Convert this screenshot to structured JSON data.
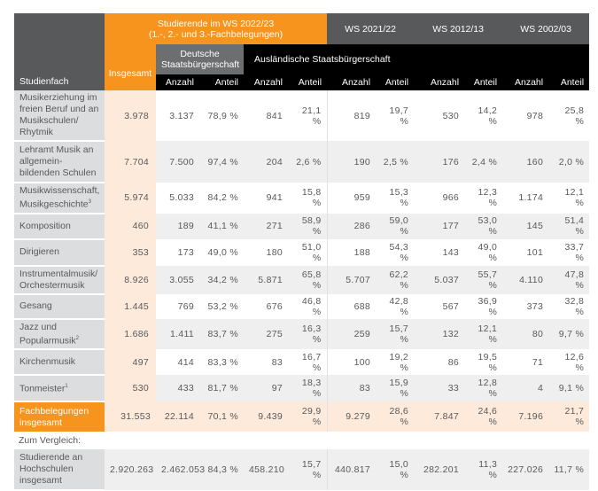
{
  "header": {
    "studienfach": "Studienfach",
    "group_current": "Studierende im WS 2022/23\n(1.-, 2.- und 3.-Fachbelegungen)",
    "ws2021": "WS 2021/22",
    "ws2012": "WS 2012/13",
    "ws2002": "WS 2002/03",
    "insgesamt": "Insgesamt",
    "deutsche": "Deutsche Staatsbürgerschaft",
    "auslaendische": "Ausländische Staatsbürgerschaft",
    "anzahl": "Anzahl",
    "anteil": "Anteil"
  },
  "rows": [
    {
      "name": "Musikerziehung im freien Beruf und an Musikschulen/ Rhytmik",
      "sup": "",
      "values": [
        "3.978",
        "3.137",
        "78,9 %",
        "841",
        "21,1 %",
        "819",
        "19,7 %",
        "530",
        "14,2 %",
        "978",
        "25,8 %"
      ]
    },
    {
      "name": "Lehramt Musik an allgemein-bildenden Schulen",
      "sup": "",
      "values": [
        "7.704",
        "7.500",
        "97,4 %",
        "204",
        "2,6 %",
        "190",
        "2,5 %",
        "176",
        "2,4 %",
        "160",
        "2,0 %"
      ]
    },
    {
      "name": "Musikwissenschaft, Musikgeschichte",
      "sup": "3",
      "values": [
        "5.974",
        "5.033",
        "84,2 %",
        "941",
        "15,8 %",
        "959",
        "15,3 %",
        "966",
        "12,3 %",
        "1.174",
        "12,1 %"
      ]
    },
    {
      "name": "Komposition",
      "sup": "",
      "values": [
        "460",
        "189",
        "41,1 %",
        "271",
        "58,9 %",
        "286",
        "59,0 %",
        "177",
        "53,0 %",
        "145",
        "51,4 %"
      ]
    },
    {
      "name": "Dirigieren",
      "sup": "",
      "values": [
        "353",
        "173",
        "49,0 %",
        "180",
        "51,0 %",
        "188",
        "54,3 %",
        "143",
        "49,0 %",
        "101",
        "33,7 %"
      ]
    },
    {
      "name": "Instrumentalmusik/ Orchestermusik",
      "sup": "",
      "values": [
        "8.926",
        "3.055",
        "34,2 %",
        "5.871",
        "65,8 %",
        "5.707",
        "62,2 %",
        "5.037",
        "55,7 %",
        "4.110",
        "47,8 %"
      ]
    },
    {
      "name": "Gesang",
      "sup": "",
      "values": [
        "1.445",
        "769",
        "53,2 %",
        "676",
        "46,8 %",
        "688",
        "42,8 %",
        "567",
        "36,9 %",
        "373",
        "32,8 %"
      ]
    },
    {
      "name": "Jazz und Popularmusik",
      "sup": "2",
      "values": [
        "1.686",
        "1.411",
        "83,7 %",
        "275",
        "16,3 %",
        "259",
        "15,7 %",
        "132",
        "12,1 %",
        "80",
        "9,7 %"
      ]
    },
    {
      "name": "Kirchenmusik",
      "sup": "",
      "values": [
        "497",
        "414",
        "83,3 %",
        "83",
        "16,7 %",
        "100",
        "19,2 %",
        "86",
        "19,5 %",
        "71",
        "12,6 %"
      ]
    },
    {
      "name": "Tonmeister",
      "sup": "1",
      "values": [
        "530",
        "433",
        "81,7 %",
        "97",
        "18,3 %",
        "83",
        "15,9 %",
        "33",
        "12,8 %",
        "4",
        "9,1 %"
      ]
    }
  ],
  "total": {
    "name": "Fachbelegungen insgesamt",
    "values": [
      "31.553",
      "22.114",
      "70,1 %",
      "9.439",
      "29,9 %",
      "9.279",
      "28,6 %",
      "7.847",
      "24,6 %",
      "7.196",
      "21,7 %"
    ]
  },
  "comparison_label": "Zum Vergleich:",
  "comparison": {
    "name": "Studierende an Hochschulen insgesamt",
    "values": [
      "2.920.263",
      "2.462.053",
      "84,3 %",
      "458.210",
      "15,7 %",
      "440.817",
      "15,0 %",
      "282.201",
      "11,3 %",
      "227.026",
      "11,7 %"
    ]
  },
  "colors": {
    "orange": "#f7941d",
    "dark": "#58595b",
    "peach": "#fdeadb",
    "black": "#000000"
  }
}
